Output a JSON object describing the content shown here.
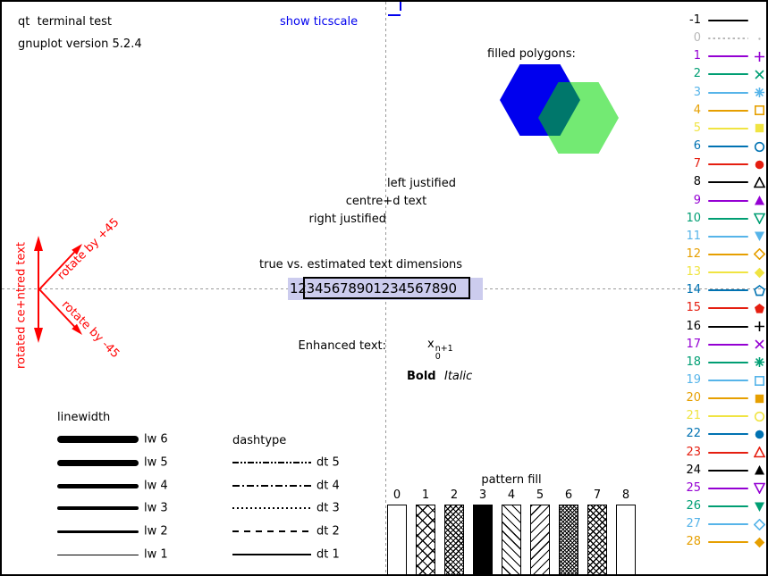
{
  "colors": {
    "red": "#ff0000",
    "link_blue": "#0000ee",
    "box_fill": "#ccccee",
    "axis_gray": "#9a9a9a",
    "violet": "#9400d3",
    "green": "#009e73",
    "skyblue": "#56b4e9",
    "orange": "#e69f00",
    "yellow": "#f0e442",
    "blue": "#0072b2",
    "vermillion": "#e51e10",
    "black": "#000000",
    "gray": "#b8b8b8"
  },
  "header": {
    "terminal": "qt  terminal test",
    "version": "gnuplot version 5.2.4",
    "ticscale_label": "show ticscale"
  },
  "polygons": {
    "title": "filled polygons:",
    "blue_fill": "#0000ee",
    "green_fill": "#00d800"
  },
  "justify": {
    "left": "left justified",
    "centre": "centre+d text",
    "right": "right justified"
  },
  "textdim": {
    "title": "true vs. estimated text dimensions",
    "sample": "12345678901234567890"
  },
  "enhanced": {
    "label": "Enhanced text:",
    "base": "x",
    "sub": "0",
    "sup": "n+1",
    "bold": "Bold",
    "italic": "Italic"
  },
  "rotated": {
    "vertical": "rotated ce+ntred text",
    "plus45": "rotate by +45",
    "minus45": "rotate by -45"
  },
  "sections": {
    "linewidth_title": "linewidth",
    "dashtype_title": "dashtype",
    "pattern_title": "pattern fill"
  },
  "chart_data": {
    "type": "table",
    "title": "qt terminal test (gnuplot version 5.2.4)",
    "linetypes": [
      {
        "label": "-1",
        "color": "#000000",
        "symbol": "none",
        "line": "solid"
      },
      {
        "label": "0",
        "color": "#b8b8b8",
        "symbol": "dot",
        "line": "dotted"
      },
      {
        "label": "1",
        "color": "#9400d3",
        "symbol": "plus",
        "line": "solid"
      },
      {
        "label": "2",
        "color": "#009e73",
        "symbol": "cross",
        "line": "solid"
      },
      {
        "label": "3",
        "color": "#56b4e9",
        "symbol": "star",
        "line": "solid"
      },
      {
        "label": "4",
        "color": "#e69f00",
        "symbol": "square-open",
        "line": "solid"
      },
      {
        "label": "5",
        "color": "#f0e442",
        "symbol": "square-filled",
        "line": "solid"
      },
      {
        "label": "6",
        "color": "#0072b2",
        "symbol": "circle-open",
        "line": "solid"
      },
      {
        "label": "7",
        "color": "#e51e10",
        "symbol": "circle-filled",
        "line": "solid"
      },
      {
        "label": "8",
        "color": "#000000",
        "symbol": "triangle-up-open",
        "line": "solid"
      },
      {
        "label": "9",
        "color": "#9400d3",
        "symbol": "triangle-up-filled",
        "line": "solid"
      },
      {
        "label": "10",
        "color": "#009e73",
        "symbol": "triangle-down-open",
        "line": "solid"
      },
      {
        "label": "11",
        "color": "#56b4e9",
        "symbol": "triangle-down-filled",
        "line": "solid"
      },
      {
        "label": "12",
        "color": "#e69f00",
        "symbol": "diamond-open",
        "line": "solid"
      },
      {
        "label": "13",
        "color": "#f0e442",
        "symbol": "diamond-filled",
        "line": "solid"
      },
      {
        "label": "14",
        "color": "#0072b2",
        "symbol": "pentagon-open",
        "line": "solid"
      },
      {
        "label": "15",
        "color": "#e51e10",
        "symbol": "pentagon-filled",
        "line": "solid"
      },
      {
        "label": "16",
        "color": "#000000",
        "symbol": "plus",
        "line": "solid"
      },
      {
        "label": "17",
        "color": "#9400d3",
        "symbol": "cross",
        "line": "solid"
      },
      {
        "label": "18",
        "color": "#009e73",
        "symbol": "star",
        "line": "solid"
      },
      {
        "label": "19",
        "color": "#56b4e9",
        "symbol": "square-open",
        "line": "solid"
      },
      {
        "label": "20",
        "color": "#e69f00",
        "symbol": "square-filled",
        "line": "solid"
      },
      {
        "label": "21",
        "color": "#f0e442",
        "symbol": "circle-open",
        "line": "solid"
      },
      {
        "label": "22",
        "color": "#0072b2",
        "symbol": "circle-filled",
        "line": "solid"
      },
      {
        "label": "23",
        "color": "#e51e10",
        "symbol": "triangle-up-open",
        "line": "solid"
      },
      {
        "label": "24",
        "color": "#000000",
        "symbol": "triangle-up-filled",
        "line": "solid"
      },
      {
        "label": "25",
        "color": "#9400d3",
        "symbol": "triangle-down-open",
        "line": "solid"
      },
      {
        "label": "26",
        "color": "#009e73",
        "symbol": "triangle-down-filled",
        "line": "solid"
      },
      {
        "label": "27",
        "color": "#56b4e9",
        "symbol": "diamond-open",
        "line": "solid"
      },
      {
        "label": "28",
        "color": "#e69f00",
        "symbol": "diamond-filled",
        "line": "solid"
      }
    ],
    "linewidths": [
      {
        "label": "lw 6",
        "lw": 6
      },
      {
        "label": "lw 5",
        "lw": 5
      },
      {
        "label": "lw 4",
        "lw": 4
      },
      {
        "label": "lw 3",
        "lw": 3
      },
      {
        "label": "lw 2",
        "lw": 2
      },
      {
        "label": "lw 1",
        "lw": 1
      }
    ],
    "dashtypes": [
      {
        "label": "dt 5",
        "dash": "dashdotdot"
      },
      {
        "label": "dt 4",
        "dash": "dashdot"
      },
      {
        "label": "dt 3",
        "dash": "dotted"
      },
      {
        "label": "dt 2",
        "dash": "dashed"
      },
      {
        "label": "dt 1",
        "dash": "solid"
      }
    ],
    "fill_patterns": [
      {
        "label": "0",
        "pattern": "empty"
      },
      {
        "label": "1",
        "pattern": "crosshatch"
      },
      {
        "label": "2",
        "pattern": "crosshatch-dense"
      },
      {
        "label": "3",
        "pattern": "solid"
      },
      {
        "label": "4",
        "pattern": "diagonal-backslash"
      },
      {
        "label": "5",
        "pattern": "diagonal-slash"
      },
      {
        "label": "6",
        "pattern": "crosshatch-fine"
      },
      {
        "label": "7",
        "pattern": "crosshatch-diamond"
      },
      {
        "label": "8",
        "pattern": "empty"
      }
    ]
  }
}
